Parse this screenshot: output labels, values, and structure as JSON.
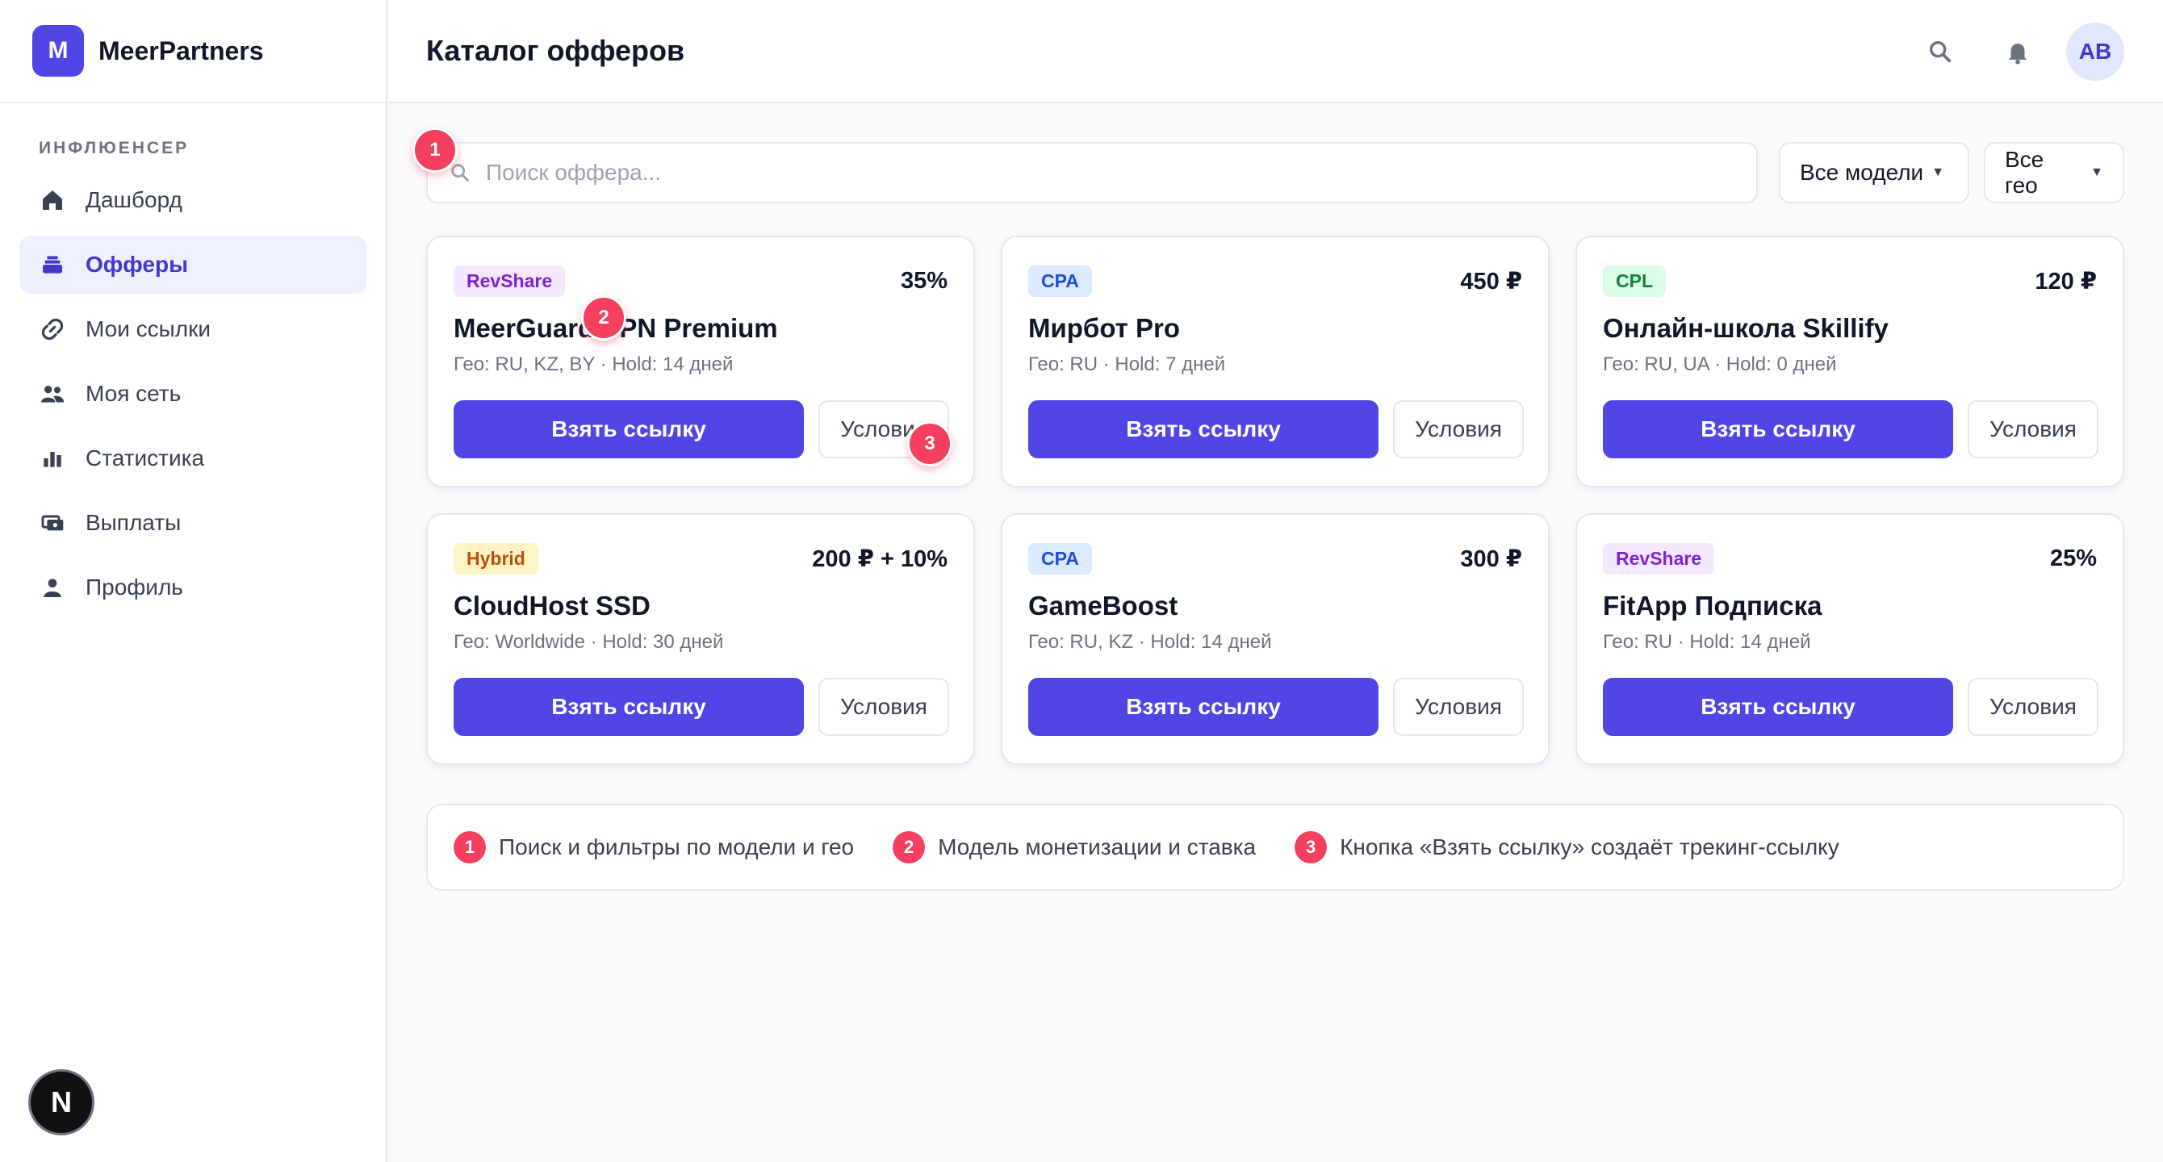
{
  "brand": {
    "logo_letter": "M",
    "name": "MeerPartners"
  },
  "sidebar": {
    "section_label": "ИНФЛЮЕНСЕР",
    "items": [
      {
        "label": "Дашборд",
        "icon": "home-icon"
      },
      {
        "label": "Офферы",
        "icon": "offers-icon",
        "active": true
      },
      {
        "label": "Мои ссылки",
        "icon": "link-icon"
      },
      {
        "label": "Моя сеть",
        "icon": "people-icon"
      },
      {
        "label": "Статистика",
        "icon": "bar-chart-icon"
      },
      {
        "label": "Выплаты",
        "icon": "payments-icon"
      },
      {
        "label": "Профиль",
        "icon": "user-icon"
      }
    ]
  },
  "header": {
    "title": "Каталог офферов",
    "avatar_initials": "AB"
  },
  "filters": {
    "search_placeholder": "Поиск оффера...",
    "search_value": "",
    "model_select": "Все модели",
    "geo_select": "Все гео"
  },
  "offers": [
    {
      "model": "RevShare",
      "rate": "35%",
      "title": "MeerGuard VPN Premium",
      "meta": "Гео: RU, KZ, BY · Hold: 14 дней",
      "primary_label": "Взять ссылку",
      "secondary_label": "Условия"
    },
    {
      "model": "CPA",
      "rate": "450 ₽",
      "title": "Мирбот Pro",
      "meta": "Гео: RU · Hold: 7 дней",
      "primary_label": "Взять ссылку",
      "secondary_label": "Условия"
    },
    {
      "model": "CPL",
      "rate": "120 ₽",
      "title": "Онлайн-школа Skillify",
      "meta": "Гео: RU, UA · Hold: 0 дней",
      "primary_label": "Взять ссылку",
      "secondary_label": "Условия"
    },
    {
      "model": "Hybrid",
      "rate": "200 ₽ + 10%",
      "title": "CloudHost SSD",
      "meta": "Гео: Worldwide · Hold: 30 дней",
      "primary_label": "Взять ссылку",
      "secondary_label": "Условия"
    },
    {
      "model": "CPA",
      "rate": "300 ₽",
      "title": "GameBoost",
      "meta": "Гео: RU, KZ · Hold: 14 дней",
      "primary_label": "Взять ссылку",
      "secondary_label": "Условия"
    },
    {
      "model": "RevShare",
      "rate": "25%",
      "title": "FitApp Подписка",
      "meta": "Гео: RU · Hold: 14 дней",
      "primary_label": "Взять ссылку",
      "secondary_label": "Условия"
    }
  ],
  "legend": [
    {
      "num": "1",
      "text": "Поиск и фильтры по модели и гео"
    },
    {
      "num": "2",
      "text": "Модель монетизации и ставка"
    },
    {
      "num": "3",
      "text": "Кнопка «Взять ссылку» создаёт трекинг-ссылку"
    }
  ],
  "markers": [
    "1",
    "2",
    "3"
  ],
  "dev_badge": "N",
  "colors": {
    "accent": "#4f46e5",
    "marker": "#f43f5e",
    "active_nav_bg": "#eef0ff"
  }
}
